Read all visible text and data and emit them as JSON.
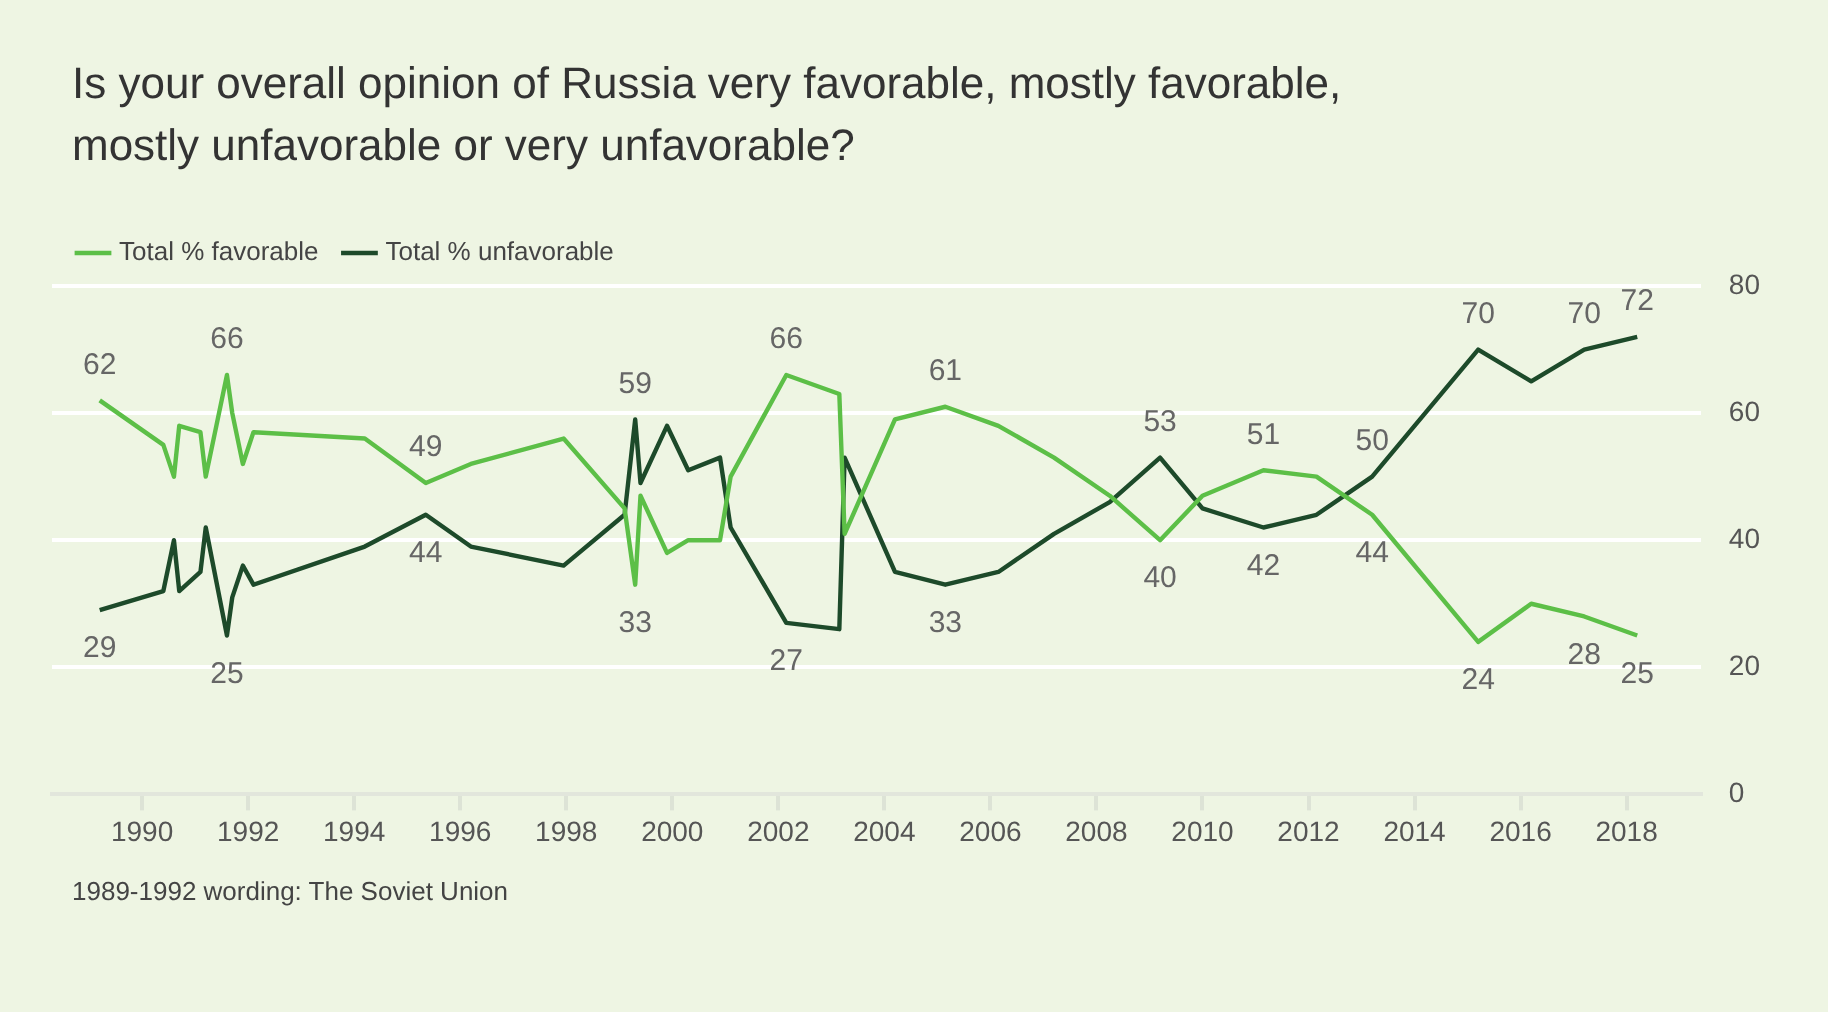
{
  "chart_data": {
    "type": "line",
    "title": "Is your overall opinion of Russia very favorable, mostly favorable, mostly unfavorable or very unfavorable?",
    "x": [
      1989.2,
      1990.4,
      1990.6,
      1990.7,
      1991.1,
      1991.2,
      1991.6,
      1991.7,
      1991.9,
      1992.1,
      1994.2,
      1995.35,
      1996.2,
      1997.95,
      1999.1,
      1999.3,
      1999.4,
      1999.9,
      2000.3,
      2000.9,
      2001.1,
      2002.15,
      2003.15,
      2003.25,
      2004.2,
      2005.15,
      2006.15,
      2007.2,
      2008.25,
      2009.2,
      2010.0,
      2011.15,
      2012.15,
      2013.2,
      2015.2,
      2016.2,
      2017.2,
      2018.2
    ],
    "series": [
      {
        "name": "Total % favorable",
        "color": "#5cbf47",
        "values": [
          62,
          55,
          50,
          58,
          57,
          50,
          66,
          60,
          52,
          57,
          56,
          49,
          52,
          56,
          45,
          33,
          47,
          38,
          40,
          40,
          50,
          66,
          63,
          41,
          59,
          61,
          58,
          53,
          47,
          40,
          47,
          51,
          50,
          44,
          24,
          30,
          28,
          25
        ],
        "value_labels": [
          "62",
          null,
          null,
          null,
          null,
          null,
          "66",
          null,
          null,
          null,
          null,
          "49",
          null,
          null,
          null,
          "33",
          null,
          null,
          null,
          null,
          null,
          "66",
          null,
          null,
          null,
          "61",
          null,
          null,
          null,
          "40",
          null,
          "51",
          null,
          "44",
          "24",
          null,
          "28",
          "25"
        ]
      },
      {
        "name": "Total % unfavorable",
        "color": "#1d4a2a",
        "values": [
          29,
          32,
          40,
          32,
          35,
          42,
          25,
          31,
          36,
          33,
          39,
          44,
          39,
          36,
          44,
          59,
          49,
          58,
          51,
          53,
          42,
          27,
          26,
          53,
          35,
          33,
          35,
          41,
          46,
          53,
          45,
          42,
          44,
          50,
          70,
          65,
          70,
          72
        ],
        "value_labels": [
          "29",
          null,
          null,
          null,
          null,
          null,
          "25",
          null,
          null,
          null,
          null,
          "44",
          null,
          null,
          null,
          "59",
          null,
          null,
          null,
          null,
          null,
          "27",
          null,
          null,
          null,
          "33",
          null,
          null,
          null,
          "53",
          null,
          "42",
          null,
          "50",
          "70",
          null,
          "70",
          "72"
        ]
      }
    ],
    "xlim": [
      1988.3,
      2019.4
    ],
    "xticks": [
      1990,
      1992,
      1994,
      1996,
      1998,
      2000,
      2002,
      2004,
      2006,
      2008,
      2010,
      2012,
      2014,
      2016,
      2018
    ],
    "ylim": [
      0,
      80
    ],
    "yticks": [
      0,
      20,
      40,
      60,
      80
    ],
    "grid": "y",
    "legend": "top left",
    "marker": "none",
    "line_style": "solid",
    "annotations": [
      "1989-1992 wording: The Soviet Union"
    ]
  }
}
